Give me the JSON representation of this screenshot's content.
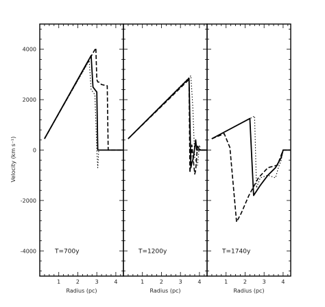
{
  "chart_data": {
    "type": "line",
    "ylabel": "Velocity (km s⁻¹)",
    "ylim": [
      -5000,
      5000
    ],
    "yticks": [
      -4000,
      -2000,
      0,
      2000,
      4000
    ],
    "ytick_labels": [
      "-4000",
      "-2000",
      "0",
      "2000",
      "4000"
    ],
    "grid": false,
    "panels": [
      {
        "label": "T=700y",
        "xlabel": "Radius (pc)",
        "xlim": [
          0,
          4.4
        ],
        "xticks": [
          1,
          2,
          3,
          4
        ],
        "xtick_labels": [
          "1",
          "2",
          "3",
          "4"
        ],
        "series": [
          {
            "style": "solid",
            "x": [
              0.25,
              2.7,
              2.8,
              2.9,
              3.0,
              3.03,
              3.05,
              4.4
            ],
            "y": [
              450,
              3750,
              2500,
              2400,
              2300,
              1000,
              0,
              0
            ]
          },
          {
            "style": "dashed",
            "x": [
              0.25,
              2.8,
              2.95,
              3.0,
              3.05,
              3.1,
              3.25,
              3.55,
              3.6,
              4.4
            ],
            "y": [
              450,
              3850,
              4050,
              2800,
              2700,
              2700,
              2600,
              2550,
              0,
              0
            ]
          },
          {
            "style": "dotted",
            "x": [
              0.25,
              2.6,
              2.7,
              2.9,
              3.0,
              3.05,
              3.1,
              3.3,
              4.4
            ],
            "y": [
              450,
              3550,
              2400,
              2200,
              0,
              -700,
              0,
              0,
              0
            ]
          }
        ]
      },
      {
        "label": "T=1200y",
        "xlabel": "Radius (pc)",
        "xlim": [
          0,
          4.4
        ],
        "xticks": [
          1,
          2,
          3,
          4
        ],
        "xtick_labels": [
          "1",
          "2",
          "3",
          "4"
        ],
        "series": [
          {
            "style": "solid",
            "x": [
              0.25,
              3.45,
              3.55,
              3.6,
              3.65,
              3.7,
              3.8,
              3.85,
              3.9,
              4.4
            ],
            "y": [
              450,
              2850,
              -700,
              -500,
              -400,
              -200,
              400,
              0,
              0,
              0
            ]
          },
          {
            "style": "dashed",
            "x": [
              0.25,
              3.45,
              3.5,
              3.6,
              3.75,
              3.8,
              3.9,
              4.0,
              4.4
            ],
            "y": [
              450,
              2800,
              -900,
              200,
              -950,
              -800,
              200,
              0,
              0
            ]
          },
          {
            "style": "dotted",
            "x": [
              0.25,
              3.55,
              3.65,
              3.75,
              3.9,
              4.0,
              4.05,
              4.4
            ],
            "y": [
              450,
              2950,
              1700,
              -300,
              -600,
              200,
              0,
              0
            ]
          }
        ]
      },
      {
        "label": "T=1740y",
        "xlabel": "Radius (pc)",
        "xlim": [
          0,
          4.4
        ],
        "xticks": [
          1,
          2,
          3,
          4
        ],
        "xtick_labels": [
          "1",
          "2",
          "3",
          "4"
        ],
        "series": [
          {
            "style": "solid",
            "x": [
              0.25,
              2.25,
              2.45,
              2.8,
              3.2,
              3.6,
              3.9,
              4.0,
              4.4
            ],
            "y": [
              450,
              1250,
              -1800,
              -1400,
              -1000,
              -700,
              -300,
              0,
              0
            ]
          },
          {
            "style": "dashed",
            "x": [
              0.25,
              0.9,
              1.2,
              1.55,
              1.8,
              2.2,
              2.7,
              3.2,
              3.7,
              4.0,
              4.4
            ],
            "y": [
              450,
              650,
              100,
              -2850,
              -2500,
              -1800,
              -1100,
              -700,
              -600,
              0,
              0
            ]
          },
          {
            "style": "dotted",
            "x": [
              0.25,
              2.5,
              2.6,
              2.8,
              3.2,
              3.6,
              3.75,
              3.9,
              4.0,
              4.4
            ],
            "y": [
              450,
              1350,
              -1500,
              -1100,
              -1000,
              -1100,
              -700,
              -400,
              0,
              0
            ]
          }
        ]
      }
    ]
  }
}
